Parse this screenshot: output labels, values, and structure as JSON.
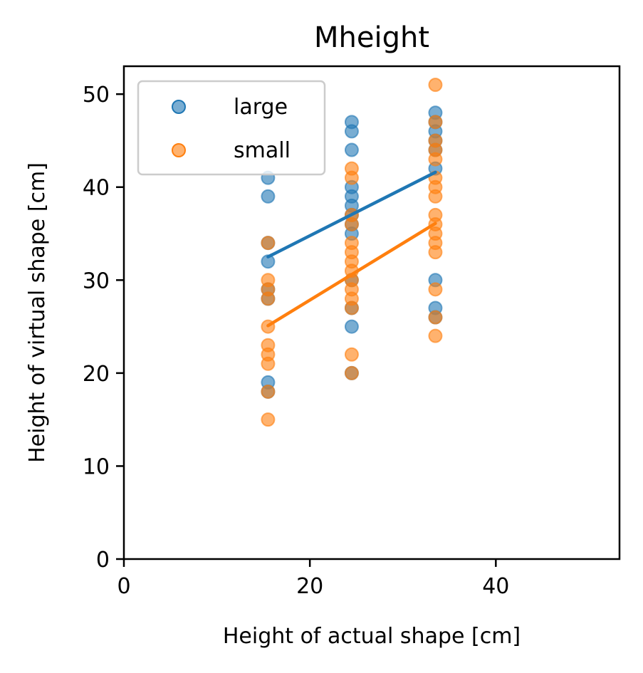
{
  "chart_data": {
    "type": "scatter",
    "title": "Mheight",
    "xlabel": "Height of actual shape [cm]",
    "ylabel": "Height of virtual shape [cm]",
    "xlim": [
      0,
      53.3
    ],
    "ylim": [
      0,
      53
    ],
    "xticks": [
      0,
      20,
      40
    ],
    "yticks": [
      0,
      10,
      20,
      30,
      40,
      50
    ],
    "grid": false,
    "legend": {
      "position": "top-left",
      "entries": [
        "large",
        "small"
      ]
    },
    "series": [
      {
        "name": "large",
        "color": "#1f77b4",
        "x": [
          15.5,
          15.5,
          15.5,
          15.5,
          15.5,
          15.5,
          15.5,
          15.5,
          24.5,
          24.5,
          24.5,
          24.5,
          24.5,
          24.5,
          24.5,
          24.5,
          24.5,
          24.5,
          24.5,
          24.5,
          24.5,
          33.5,
          33.5,
          33.5,
          33.5,
          33.5,
          33.5,
          33.5,
          33.5,
          33.5
        ],
        "y": [
          41,
          39,
          34,
          32,
          29,
          28,
          19,
          18,
          47,
          46,
          44,
          40,
          39,
          38,
          37,
          36,
          35,
          30,
          27,
          25,
          20,
          48,
          47,
          46,
          45,
          44,
          42,
          30,
          27,
          26
        ],
        "fit": {
          "x": [
            15.5,
            33.5
          ],
          "y": [
            32.5,
            41.6
          ]
        }
      },
      {
        "name": "small",
        "color": "#ff7f0e",
        "x": [
          15.5,
          15.5,
          15.5,
          15.5,
          15.5,
          15.5,
          15.5,
          15.5,
          15.5,
          15.5,
          24.5,
          24.5,
          24.5,
          24.5,
          24.5,
          24.5,
          24.5,
          24.5,
          24.5,
          24.5,
          24.5,
          24.5,
          24.5,
          24.5,
          33.5,
          33.5,
          33.5,
          33.5,
          33.5,
          33.5,
          33.5,
          33.5,
          33.5,
          33.5,
          33.5,
          33.5,
          33.5,
          33.5,
          33.5,
          33.5
        ],
        "y": [
          34,
          30,
          29,
          25,
          23,
          22,
          21,
          18,
          15,
          28,
          42,
          41,
          37,
          36,
          34,
          33,
          32,
          31,
          30,
          29,
          28,
          27,
          22,
          20,
          51,
          47,
          45,
          44,
          43,
          41,
          40,
          39,
          37,
          36,
          35,
          34,
          33,
          29,
          26,
          24
        ],
        "fit": {
          "x": [
            15.5,
            33.5
          ],
          "y": [
            25.1,
            36.1
          ]
        }
      }
    ]
  }
}
